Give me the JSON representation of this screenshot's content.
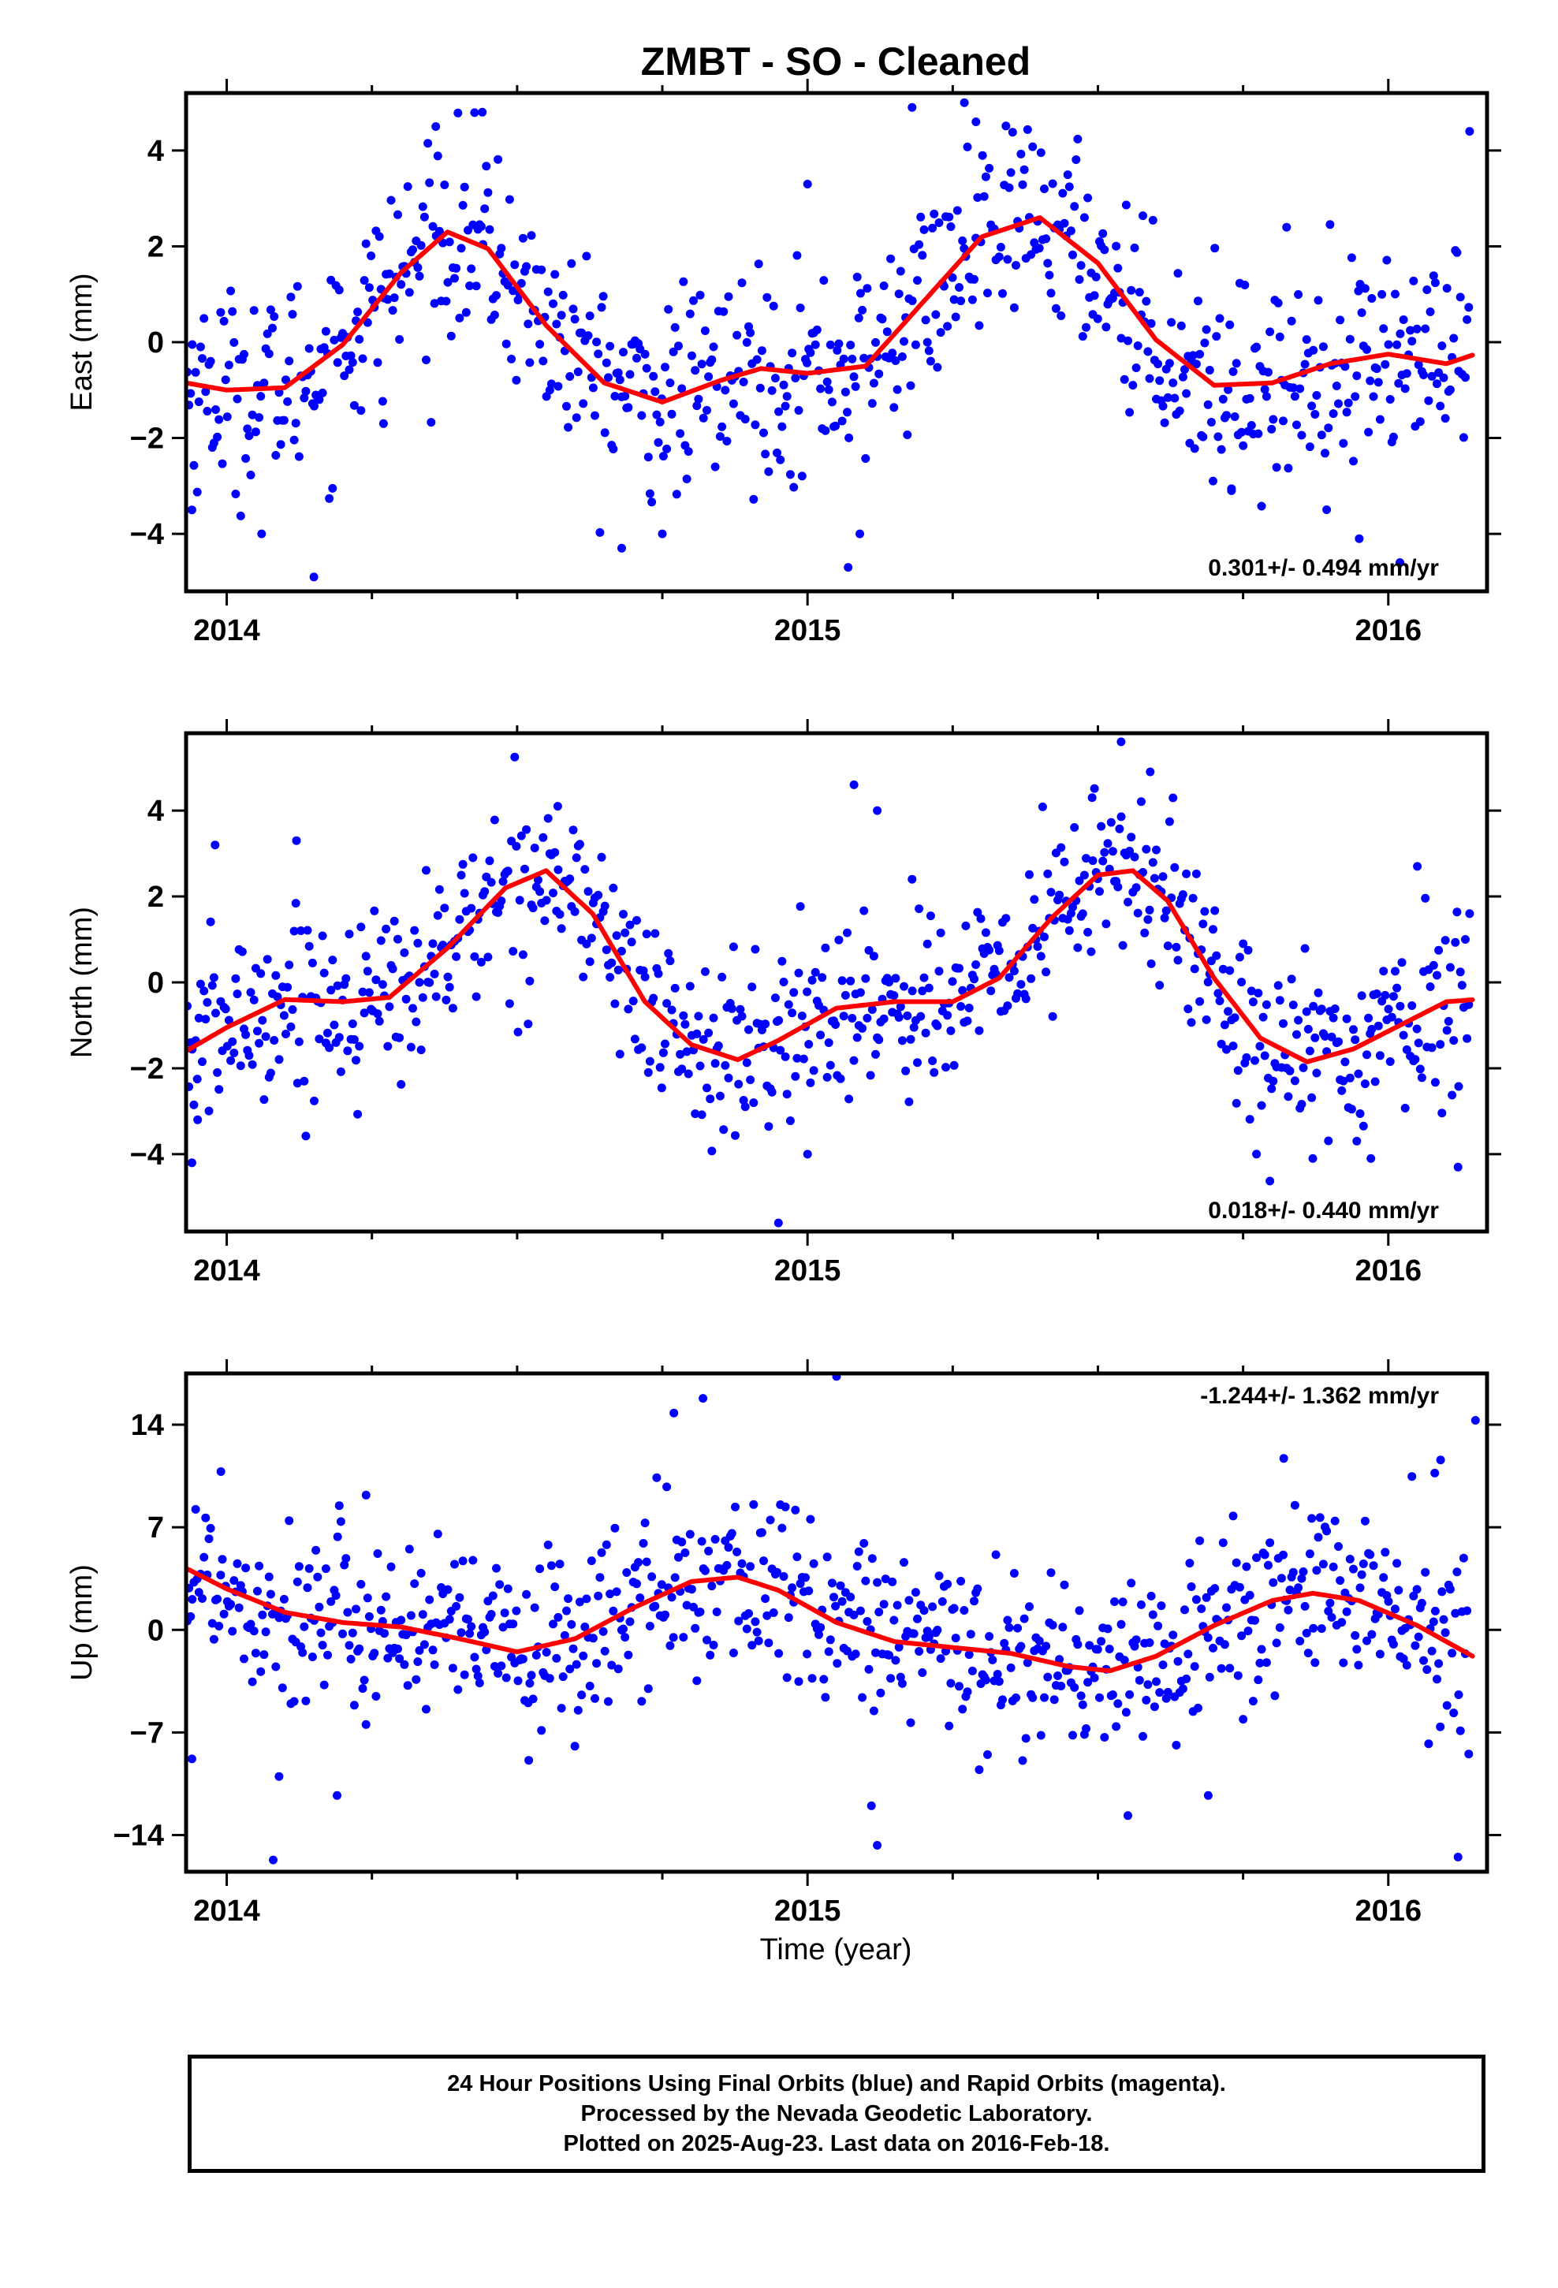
{
  "title": "ZMBT  - SO - Cleaned",
  "xlabel": "Time (year)",
  "colors": {
    "points": "#0000ff",
    "model": "#ff0000",
    "rapid": "#ff00ff",
    "axes": "#000000"
  },
  "footer": {
    "line1": "24 Hour Positions Using Final Orbits (blue) and Rapid Orbits (magenta).",
    "line2": "Processed by the Nevada Geodetic Laboratory.",
    "line3": "Plotted on 2025-Aug-23. Last data on 2016-Feb-18."
  },
  "chart_data": [
    {
      "type": "scatter",
      "component": "east",
      "ylabel": "East (mm)",
      "rate": "0.301+/- 0.494 mm/yr",
      "xlim": [
        2013.93,
        2016.17
      ],
      "ylim": [
        -5.2,
        5.2
      ],
      "x_ticks": [
        2014,
        2015,
        2016
      ],
      "y_ticks": [
        -4,
        -2,
        0,
        2,
        4
      ],
      "y_tick_labels": [
        "−4",
        "−2",
        "0",
        "2",
        "4"
      ],
      "grid": false,
      "model_curve": {
        "x": [
          2013.93,
          2014.0,
          2014.1,
          2014.2,
          2014.3,
          2014.38,
          2014.45,
          2014.55,
          2014.65,
          2014.75,
          2014.85,
          2014.92,
          2015.0,
          2015.1,
          2015.2,
          2015.3,
          2015.4,
          2015.5,
          2015.6,
          2015.7,
          2015.8,
          2015.9,
          2016.0,
          2016.1,
          2016.15
        ],
        "y": [
          -0.85,
          -1.0,
          -0.95,
          -0.05,
          1.45,
          2.3,
          1.95,
          0.35,
          -0.85,
          -1.25,
          -0.8,
          -0.55,
          -0.65,
          -0.5,
          0.85,
          2.2,
          2.6,
          1.65,
          0.05,
          -0.9,
          -0.85,
          -0.45,
          -0.25,
          -0.45,
          -0.25
        ]
      },
      "notable_points": {
        "x": [
          2013.94,
          2014.06,
          2014.15,
          2014.36,
          2014.44,
          2014.75,
          2015.0,
          2015.18,
          2015.27,
          2015.29,
          2015.09,
          2015.07,
          2015.73,
          2015.95,
          2016.02,
          2016.14,
          2014.27,
          2014.68
        ],
        "y": [
          -3.5,
          -4.0,
          -4.9,
          4.5,
          4.8,
          -4.0,
          3.3,
          4.9,
          5.0,
          4.6,
          -4.0,
          -4.7,
          -3.1,
          -4.1,
          -4.6,
          4.4,
          -1.7,
          -4.3
        ]
      }
    },
    {
      "type": "scatter",
      "component": "north",
      "ylabel": "North (mm)",
      "rate": "0.018+/- 0.440 mm/yr",
      "xlim": [
        2013.93,
        2016.17
      ],
      "ylim": [
        -5.8,
        5.8
      ],
      "x_ticks": [
        2014,
        2015,
        2016
      ],
      "y_ticks": [
        -4,
        -2,
        0,
        2,
        4
      ],
      "y_tick_labels": [
        "−4",
        "−2",
        "0",
        "2",
        "4"
      ],
      "grid": false,
      "model_curve": {
        "x": [
          2013.93,
          2014.0,
          2014.1,
          2014.2,
          2014.28,
          2014.38,
          2014.48,
          2014.55,
          2014.63,
          2014.72,
          2014.8,
          2014.88,
          2014.95,
          2015.05,
          2015.15,
          2015.25,
          2015.33,
          2015.42,
          2015.5,
          2015.56,
          2015.62,
          2015.7,
          2015.78,
          2015.86,
          2015.94,
          2016.02,
          2016.1,
          2016.15
        ],
        "y": [
          -1.6,
          -1.05,
          -0.4,
          -0.45,
          -0.35,
          0.8,
          2.2,
          2.6,
          1.6,
          -0.45,
          -1.45,
          -1.8,
          -1.35,
          -0.6,
          -0.45,
          -0.45,
          0.1,
          1.5,
          2.5,
          2.6,
          1.9,
          0.1,
          -1.3,
          -1.85,
          -1.55,
          -1.0,
          -0.45,
          -0.4
        ]
      },
      "notable_points": {
        "x": [
          2013.94,
          2013.95,
          2013.98,
          2014.12,
          2014.57,
          2015.08,
          2015.12,
          2015.18,
          2015.49,
          2015.54,
          2015.59,
          2015.87,
          2015.97,
          2016.05,
          2016.12,
          2016.14,
          2014.95,
          2015.0
        ],
        "y": [
          -4.2,
          -3.2,
          3.2,
          3.3,
          4.1,
          4.6,
          4.0,
          2.4,
          4.3,
          5.6,
          4.9,
          -4.1,
          -4.1,
          2.7,
          -4.3,
          1.6,
          -5.6,
          -4.0
        ]
      }
    },
    {
      "type": "scatter",
      "component": "up",
      "ylabel": "Up (mm)",
      "rate": "-1.244+/- 1.362 mm/yr",
      "xlim": [
        2013.93,
        2016.17
      ],
      "ylim": [
        -16.5,
        17.5
      ],
      "x_ticks": [
        2014,
        2015,
        2016
      ],
      "y_ticks": [
        -14,
        -7,
        0,
        7,
        14
      ],
      "y_tick_labels": [
        "−14",
        "−7",
        "0",
        "7",
        "14"
      ],
      "grid": false,
      "model_curve": {
        "x": [
          2013.93,
          2014.0,
          2014.1,
          2014.2,
          2014.3,
          2014.4,
          2014.5,
          2014.6,
          2014.7,
          2014.8,
          2014.88,
          2014.95,
          2015.05,
          2015.15,
          2015.25,
          2015.35,
          2015.45,
          2015.52,
          2015.6,
          2015.7,
          2015.8,
          2015.87,
          2015.95,
          2016.05,
          2016.15
        ],
        "y": [
          4.2,
          2.8,
          1.2,
          0.5,
          0.2,
          -0.6,
          -1.5,
          -0.6,
          1.5,
          3.3,
          3.6,
          2.7,
          0.5,
          -0.8,
          -1.2,
          -1.6,
          -2.5,
          -2.8,
          -1.8,
          0.3,
          2.0,
          2.5,
          2.0,
          0.3,
          -1.9
        ]
      },
      "notable_points": {
        "x": [
          2013.94,
          2013.99,
          2014.08,
          2014.09,
          2014.19,
          2014.24,
          2014.77,
          2014.82,
          2015.05,
          2015.12,
          2015.11,
          2015.69,
          2015.82,
          2016.08,
          2016.09,
          2016.15,
          2016.12,
          2014.52
        ],
        "y": [
          -8.8,
          10.8,
          -15.7,
          -10.0,
          -11.3,
          9.2,
          14.8,
          15.8,
          17.3,
          -14.7,
          -12.0,
          -11.3,
          11.7,
          10.7,
          11.6,
          14.3,
          -15.5,
          -8.9
        ]
      }
    }
  ]
}
